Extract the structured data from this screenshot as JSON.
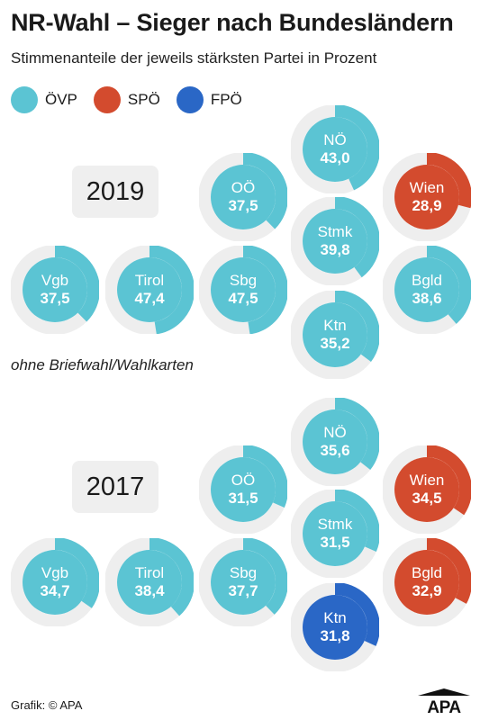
{
  "title": "NR-Wahl – Sieger nach Bundesländern",
  "subtitle": "Stimmenanteile der jeweils stärksten Partei in Prozent",
  "legend": [
    {
      "party": "ÖVP",
      "color": "#5bc4d3"
    },
    {
      "party": "SPÖ",
      "color": "#d34b2e"
    },
    {
      "party": "FPÖ",
      "color": "#2a67c6"
    }
  ],
  "note": "ohne Briefwahl/Wahlkarten",
  "credit": "Grafik: © APA",
  "logo_text": "APA",
  "colors": {
    "track": "#eeeeee",
    "ÖVP": "#5bc4d3",
    "SPÖ": "#d34b2e",
    "FPÖ": "#2a67c6"
  },
  "chart_data": [
    {
      "type": "donut",
      "year": "2019",
      "states": [
        {
          "name": "NÖ",
          "value": 43.0,
          "label": "43,0",
          "party": "ÖVP"
        },
        {
          "name": "OÖ",
          "value": 37.5,
          "label": "37,5",
          "party": "ÖVP"
        },
        {
          "name": "Wien",
          "value": 28.9,
          "label": "28,9",
          "party": "SPÖ"
        },
        {
          "name": "Stmk",
          "value": 39.8,
          "label": "39,8",
          "party": "ÖVP"
        },
        {
          "name": "Vgb",
          "value": 37.5,
          "label": "37,5",
          "party": "ÖVP"
        },
        {
          "name": "Tirol",
          "value": 47.4,
          "label": "47,4",
          "party": "ÖVP"
        },
        {
          "name": "Sbg",
          "value": 47.5,
          "label": "47,5",
          "party": "ÖVP"
        },
        {
          "name": "Bgld",
          "value": 38.6,
          "label": "38,6",
          "party": "ÖVP"
        },
        {
          "name": "Ktn",
          "value": 35.2,
          "label": "35,2",
          "party": "ÖVP"
        }
      ]
    },
    {
      "type": "donut",
      "year": "2017",
      "states": [
        {
          "name": "NÖ",
          "value": 35.6,
          "label": "35,6",
          "party": "ÖVP"
        },
        {
          "name": "OÖ",
          "value": 31.5,
          "label": "31,5",
          "party": "ÖVP"
        },
        {
          "name": "Wien",
          "value": 34.5,
          "label": "34,5",
          "party": "SPÖ"
        },
        {
          "name": "Stmk",
          "value": 31.5,
          "label": "31,5",
          "party": "ÖVP"
        },
        {
          "name": "Vgb",
          "value": 34.7,
          "label": "34,7",
          "party": "ÖVP"
        },
        {
          "name": "Tirol",
          "value": 38.4,
          "label": "38,4",
          "party": "ÖVP"
        },
        {
          "name": "Sbg",
          "value": 37.7,
          "label": "37,7",
          "party": "ÖVP"
        },
        {
          "name": "Bgld",
          "value": 32.9,
          "label": "32,9",
          "party": "SPÖ"
        },
        {
          "name": "Ktn",
          "value": 31.8,
          "label": "31,8",
          "party": "FPÖ"
        }
      ]
    }
  ]
}
